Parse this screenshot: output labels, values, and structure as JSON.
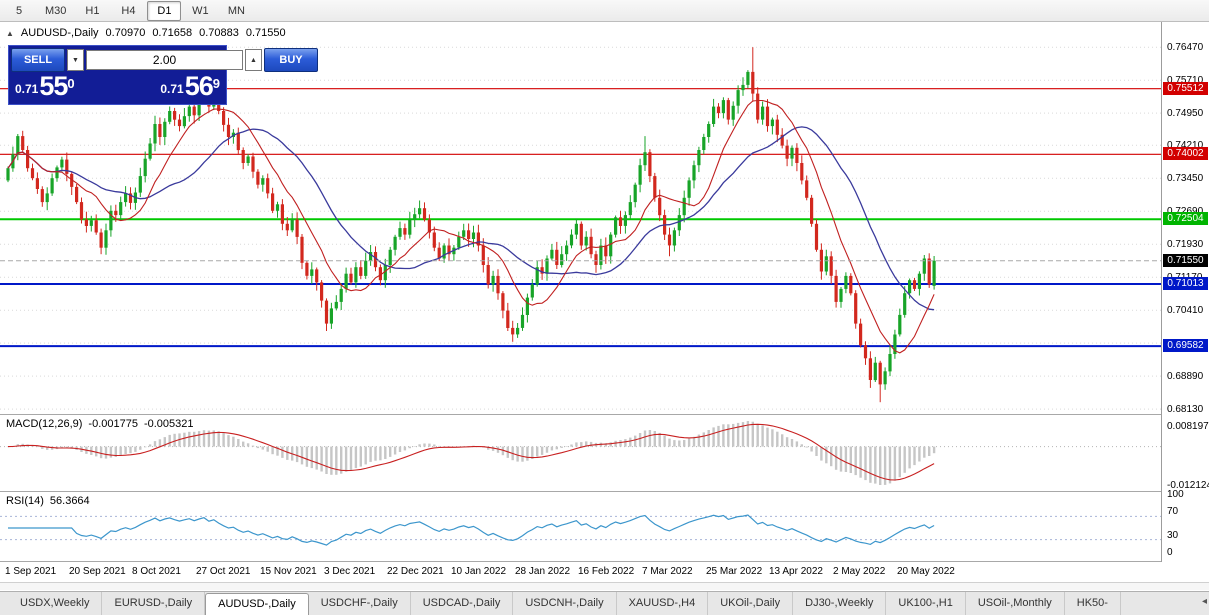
{
  "colors": {
    "bull": "#18a428",
    "bear": "#d2281e",
    "ma_fast": "#c02020",
    "ma_slow": "#3a3a9c",
    "macd_hist": "#c6c6c6",
    "macd_signal": "#c82020",
    "rsi_line": "#3c96cc",
    "grid": "#d9d9d9"
  },
  "toolbar": {
    "active": "D1",
    "periods": [
      "5",
      "M30",
      "H1",
      "H4",
      "D1",
      "W1",
      "MN"
    ]
  },
  "chart_header": {
    "collapse_icon": "▲",
    "symbol_period": "AUDUSD-,Daily",
    "open": "0.70970",
    "high": "0.71658",
    "low": "0.70883",
    "close": "0.71550"
  },
  "trade_panel": {
    "sell_label": "SELL",
    "buy_label": "BUY",
    "lot_value": "2.00",
    "lot_down_icon": "▼",
    "lot_up_icon": "▲",
    "sell_price_prefix": "0.71",
    "sell_price_big": "55",
    "sell_price_sup": "0",
    "buy_price_prefix": "0.71",
    "buy_price_big": "56",
    "buy_price_sup": "9"
  },
  "price_axis": {
    "ticks": [
      "0.76470",
      "0.75710",
      "0.74950",
      "0.74210",
      "0.73450",
      "0.72690",
      "0.71930",
      "0.71170",
      "0.70410",
      "0.69650",
      "0.68890",
      "0.68130"
    ],
    "markers": [
      {
        "text": "0.75512",
        "bg": "#d20000"
      },
      {
        "text": "0.74002",
        "bg": "#d20000"
      },
      {
        "text": "0.72504",
        "bg": "#00b400"
      },
      {
        "text": "0.71550",
        "bg": "#000000"
      },
      {
        "text": "0.71013",
        "bg": "#0018c8"
      },
      {
        "text": "0.69582",
        "bg": "#0018c8"
      }
    ]
  },
  "hlines": [
    {
      "price": 0.75512,
      "color": "#d20000",
      "width": 1.2,
      "name": "resistance-line-upper"
    },
    {
      "price": 0.74002,
      "color": "#d20000",
      "width": 1.2,
      "name": "resistance-line-lower"
    },
    {
      "price": 0.72504,
      "color": "#00c800",
      "width": 2,
      "name": "pivot-line-green"
    },
    {
      "price": 0.71013,
      "color": "#0018c8",
      "width": 2,
      "name": "support-line-upper"
    },
    {
      "price": 0.69582,
      "color": "#0018c8",
      "width": 2,
      "name": "support-line-lower"
    }
  ],
  "current_price": {
    "text": "0.71550",
    "value": 0.7155
  },
  "chart_data": {
    "type": "candlestick",
    "title": "AUDUSD-,Daily",
    "y_range": [
      0.6804,
      0.7705
    ],
    "first_open": 0.734,
    "ma_fast_period": 10,
    "ma_slow_period": 24,
    "closes": [
      0.7368,
      0.74,
      0.7442,
      0.741,
      0.7368,
      0.7345,
      0.732,
      0.729,
      0.731,
      0.7345,
      0.737,
      0.7388,
      0.7355,
      0.7325,
      0.729,
      0.725,
      0.7235,
      0.7248,
      0.722,
      0.7185,
      0.7225,
      0.727,
      0.726,
      0.729,
      0.731,
      0.7288,
      0.7312,
      0.735,
      0.739,
      0.7425,
      0.747,
      0.744,
      0.7475,
      0.75,
      0.748,
      0.7465,
      0.7488,
      0.751,
      0.749,
      0.752,
      0.7545,
      0.751,
      0.7535,
      0.75,
      0.7468,
      0.744,
      0.745,
      0.741,
      0.738,
      0.7395,
      0.736,
      0.733,
      0.7345,
      0.731,
      0.727,
      0.7285,
      0.724,
      0.7225,
      0.725,
      0.721,
      0.715,
      0.712,
      0.7135,
      0.7105,
      0.7063,
      0.701,
      0.7045,
      0.706,
      0.709,
      0.7125,
      0.7105,
      0.714,
      0.712,
      0.7155,
      0.7175,
      0.714,
      0.711,
      0.7145,
      0.718,
      0.721,
      0.723,
      0.7215,
      0.725,
      0.7262,
      0.7276,
      0.725,
      0.722,
      0.7185,
      0.716,
      0.719,
      0.717,
      0.7185,
      0.721,
      0.7225,
      0.7205,
      0.722,
      0.719,
      0.7145,
      0.71,
      0.712,
      0.708,
      0.704,
      0.7,
      0.6985,
      0.7,
      0.703,
      0.707,
      0.71,
      0.714,
      0.7125,
      0.716,
      0.718,
      0.7145,
      0.717,
      0.719,
      0.7215,
      0.724,
      0.719,
      0.721,
      0.717,
      0.7145,
      0.719,
      0.7165,
      0.7215,
      0.7255,
      0.7235,
      0.726,
      0.729,
      0.733,
      0.7375,
      0.7405,
      0.735,
      0.73,
      0.726,
      0.7215,
      0.719,
      0.7225,
      0.726,
      0.73,
      0.734,
      0.7375,
      0.741,
      0.744,
      0.747,
      0.751,
      0.7495,
      0.7525,
      0.748,
      0.7512,
      0.7548,
      0.756,
      0.759,
      0.754,
      0.748,
      0.751,
      0.7465,
      0.748,
      0.7445,
      0.742,
      0.739,
      0.7415,
      0.738,
      0.734,
      0.73,
      0.724,
      0.718,
      0.713,
      0.7165,
      0.712,
      0.706,
      0.709,
      0.712,
      0.708,
      0.701,
      0.696,
      0.693,
      0.688,
      0.692,
      0.687,
      0.69,
      0.694,
      0.6985,
      0.703,
      0.708,
      0.711,
      0.709,
      0.7125,
      0.716,
      0.71,
      0.7155
    ],
    "overrides": {
      "2": {
        "h": 0.7447
      },
      "19": {
        "l": 0.717
      },
      "40": {
        "h": 0.7556
      },
      "65": {
        "l": 0.6993
      },
      "103": {
        "l": 0.6968
      },
      "130": {
        "h": 0.7442
      },
      "135": {
        "l": 0.7165
      },
      "152": {
        "h": 0.7647
      },
      "178": {
        "l": 0.6829
      },
      "188": {
        "h": 0.7172
      },
      "189": {
        "o": 0.7097,
        "h": 0.71658,
        "l": 0.70883
      }
    },
    "date_labels": [
      {
        "i": 0,
        "text": "1 Sep 2021"
      },
      {
        "i": 13,
        "text": "20 Sep 2021"
      },
      {
        "i": 26,
        "text": "8 Oct 2021"
      },
      {
        "i": 39,
        "text": "27 Oct 2021"
      },
      {
        "i": 52,
        "text": "15 Nov 2021"
      },
      {
        "i": 65,
        "text": "3 Dec 2021"
      },
      {
        "i": 78,
        "text": "22 Dec 2021"
      },
      {
        "i": 91,
        "text": "10 Jan 2022"
      },
      {
        "i": 104,
        "text": "28 Jan 2022"
      },
      {
        "i": 117,
        "text": "16 Feb 2022"
      },
      {
        "i": 130,
        "text": "7 Mar 2022"
      },
      {
        "i": 143,
        "text": "25 Mar 2022"
      },
      {
        "i": 156,
        "text": "13 Apr 2022"
      },
      {
        "i": 169,
        "text": "2 May 2022"
      },
      {
        "i": 182,
        "text": "20 May 2022"
      }
    ]
  },
  "macd": {
    "label": "MACD(12,26,9)",
    "value_main": "-0.001775",
    "value_signal": "-0.005321",
    "fast": 12,
    "slow": 26,
    "signal": 9,
    "axis_top": "0.008197",
    "axis_bottom": "-0.012124"
  },
  "rsi": {
    "label": "RSI(14)",
    "value": "56.3664",
    "period": 14,
    "axis_labels": [
      "100",
      "70",
      "30",
      "0"
    ],
    "levels": [
      70,
      30
    ]
  },
  "bottom_tabs": {
    "active_index": 2,
    "scroll_icon": "◂",
    "items": [
      "USDX,Weekly",
      "EURUSD-,Daily",
      "AUDUSD-,Daily",
      "USDCHF-,Daily",
      "USDCAD-,Daily",
      "USDCNH-,Daily",
      "XAUUSD-,H4",
      "UKOil-,Daily",
      "DJ30-,Weekly",
      "UK100-,H1",
      "USOil-,Monthly",
      "HK50-"
    ]
  }
}
